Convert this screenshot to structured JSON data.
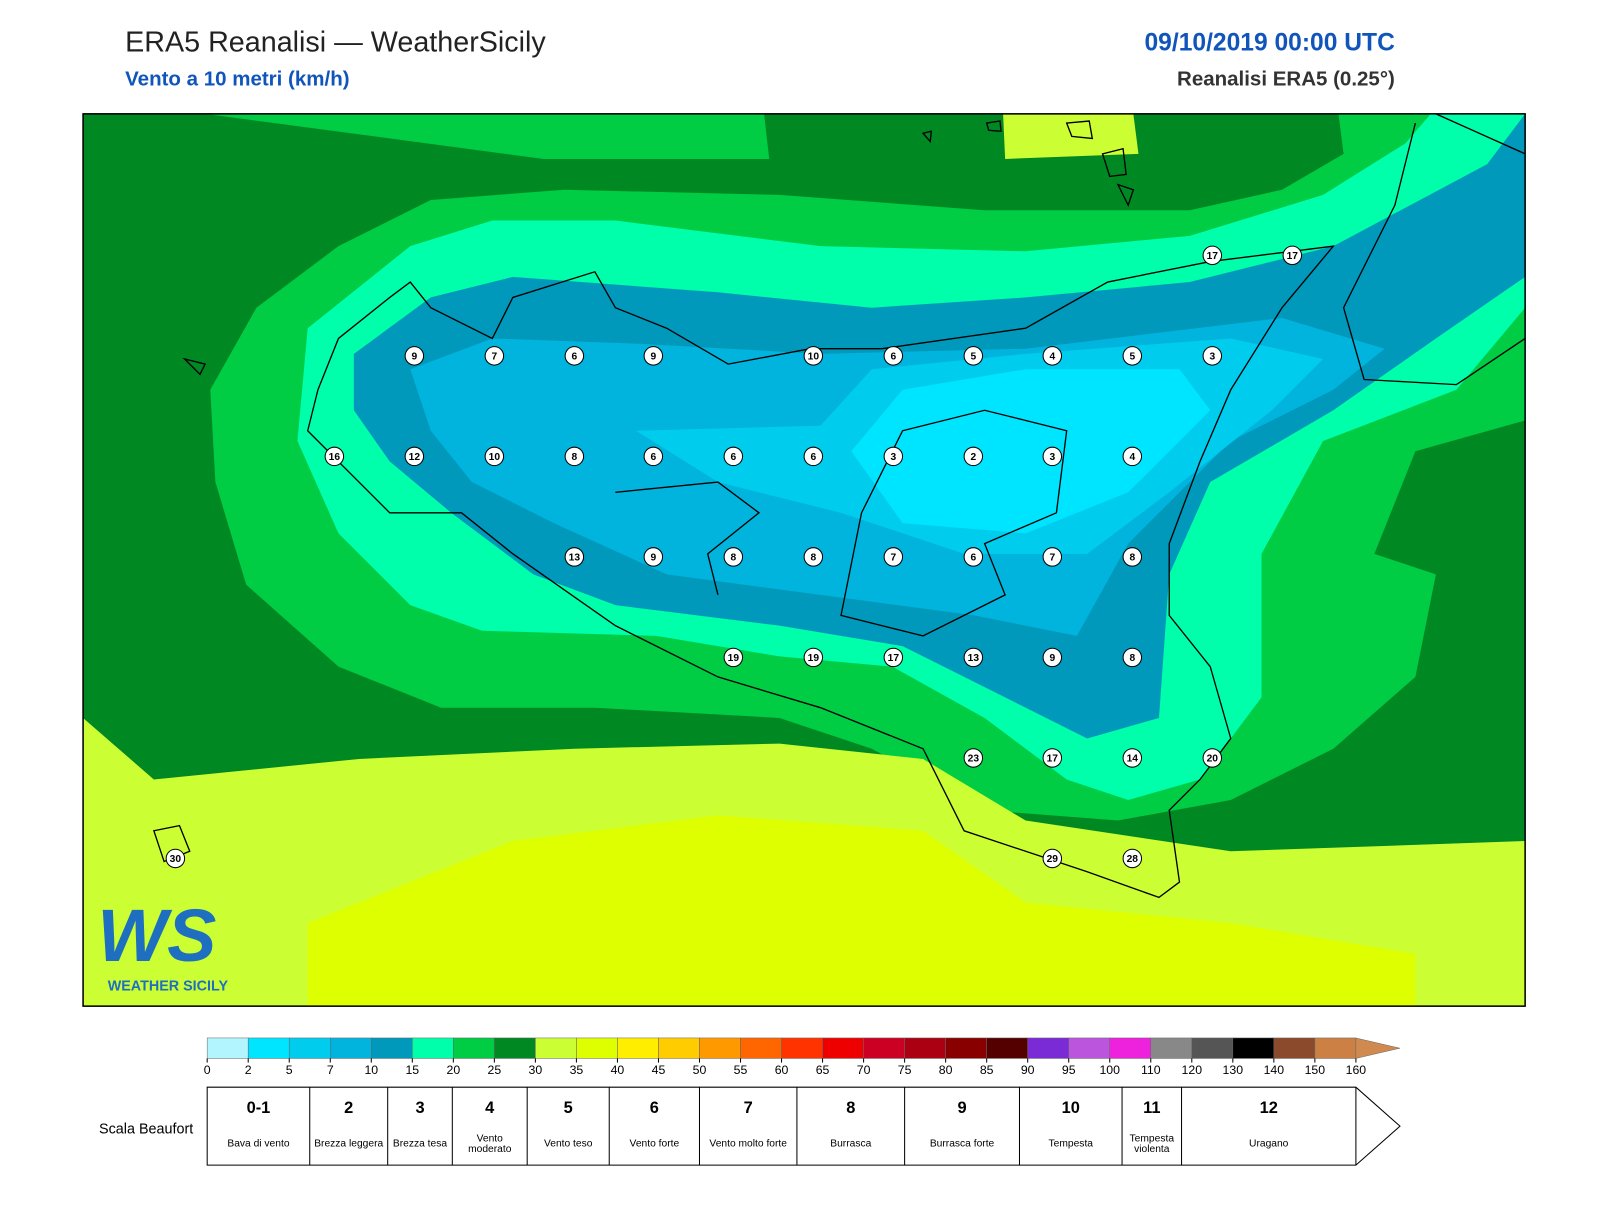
{
  "header": {
    "title": "ERA5 Reanalisi — WeatherSicily",
    "subtitle": "Vento a 10 metri (km/h)",
    "datetime": "09/10/2019 00:00 UTC",
    "source": "Reanalisi ERA5 (0.25°)"
  },
  "map": {
    "station_values": [
      17,
      17,
      9,
      7,
      6,
      9,
      10,
      6,
      5,
      4,
      5,
      3,
      16,
      12,
      10,
      8,
      6,
      6,
      6,
      3,
      2,
      3,
      4,
      13,
      9,
      8,
      8,
      7,
      6,
      7,
      8,
      19,
      19,
      17,
      13,
      9,
      8,
      23,
      17,
      14,
      20,
      30,
      29,
      28
    ]
  },
  "logo": {
    "text": "WS",
    "caption": "WEATHER SICILY"
  },
  "colorbar": {
    "ticks": [
      0,
      2,
      5,
      7,
      10,
      15,
      20,
      25,
      30,
      35,
      40,
      45,
      50,
      55,
      60,
      65,
      70,
      75,
      80,
      85,
      90,
      95,
      100,
      110,
      120,
      130,
      140,
      150,
      160
    ],
    "colors": [
      "#b3f5ff",
      "#00e5ff",
      "#00ccee",
      "#00b4dd",
      "#0099bb",
      "#00ffaa",
      "#00cc44",
      "#008822",
      "#ccff33",
      "#ddff00",
      "#ffee00",
      "#ffcc00",
      "#ff9900",
      "#ff6600",
      "#ff3300",
      "#ee0000",
      "#cc0022",
      "#aa0011",
      "#880000",
      "#550000",
      "#7b2bd6",
      "#bb55dd",
      "#ee22dd",
      "#888888",
      "#555555",
      "#000000",
      "#8b4a2b",
      "#cc8044",
      "#d08a50"
    ]
  },
  "beaufort": {
    "label": "Scala Beaufort",
    "levels": [
      {
        "force": "0-1",
        "description": "Bava di vento"
      },
      {
        "force": "2",
        "description": "Brezza leggera"
      },
      {
        "force": "3",
        "description": "Brezza tesa"
      },
      {
        "force": "4",
        "description": "Vento moderato"
      },
      {
        "force": "5",
        "description": "Vento teso"
      },
      {
        "force": "6",
        "description": "Vento forte"
      },
      {
        "force": "7",
        "description": "Vento molto forte"
      },
      {
        "force": "8",
        "description": "Burrasca"
      },
      {
        "force": "9",
        "description": "Burrasca forte"
      },
      {
        "force": "10",
        "description": "Tempesta"
      },
      {
        "force": "11",
        "description": "Tempesta violenta"
      },
      {
        "force": "12",
        "description": "Uragano"
      }
    ]
  }
}
